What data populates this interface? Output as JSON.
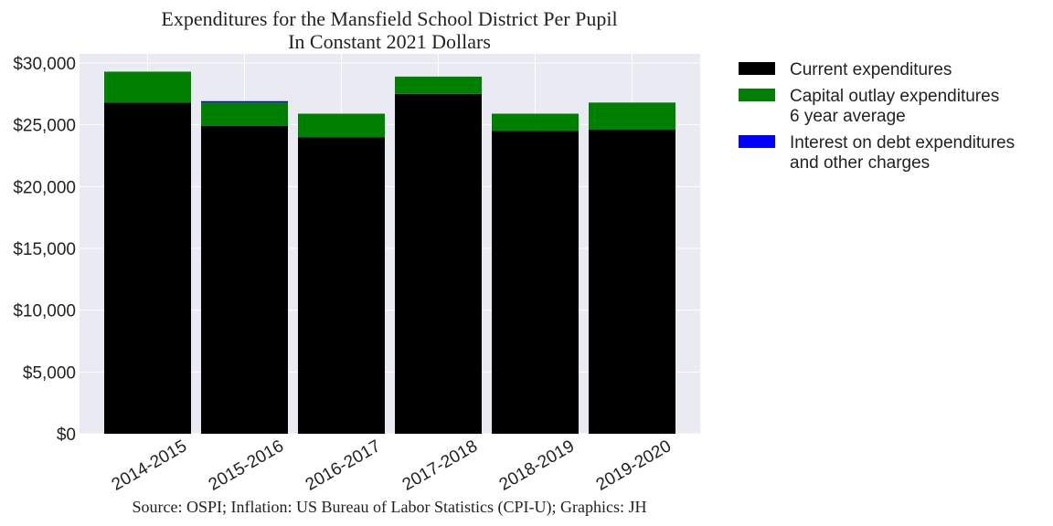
{
  "chart_data": {
    "type": "bar",
    "stacked": true,
    "title": [
      "Expenditures for the Mansfield School District Per Pupil",
      "In Constant 2021 Dollars"
    ],
    "source": "Source: OSPI; Inflation: US Bureau of Labor Statistics (CPI-U); Graphics: JH",
    "categories": [
      "2014-2015",
      "2015-2016",
      "2016-2017",
      "2017-2018",
      "2018-2019",
      "2019-2020"
    ],
    "series": [
      {
        "name": "Current expenditures",
        "color": "#000000",
        "values": [
          26800,
          24900,
          24000,
          27500,
          24500,
          24600
        ]
      },
      {
        "name": "Capital outlay expenditures\n6 year average",
        "color": "#008000",
        "values": [
          2500,
          1900,
          1900,
          1400,
          1400,
          2200
        ]
      },
      {
        "name": "Interest on debt expenditures\nand other charges",
        "color": "#0000ff",
        "values": [
          0,
          100,
          0,
          0,
          0,
          0
        ]
      }
    ],
    "ylim": [
      0,
      30000
    ],
    "yticks": [
      0,
      5000,
      10000,
      15000,
      20000,
      25000,
      30000
    ],
    "ytick_labels": [
      "$0",
      "$5,000",
      "$10,000",
      "$15,000",
      "$20,000",
      "$25,000",
      "$30,000"
    ],
    "grid": true,
    "legend_position": "outside-right"
  }
}
